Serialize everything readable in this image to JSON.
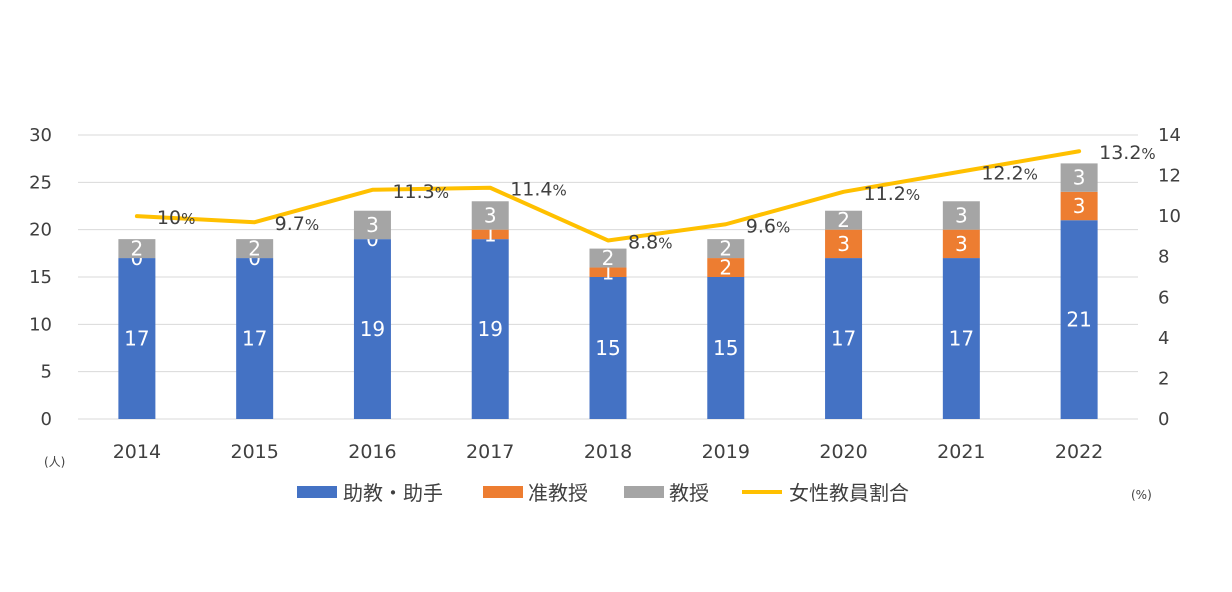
{
  "chart_data": {
    "type": "bar",
    "stacked": true,
    "categories": [
      "2014",
      "2015",
      "2016",
      "2017",
      "2018",
      "2019",
      "2020",
      "2021",
      "2022"
    ],
    "series": [
      {
        "name": "助教・助手",
        "color": "#4472C4",
        "values": [
          17,
          17,
          19,
          19,
          15,
          15,
          17,
          17,
          21
        ]
      },
      {
        "name": "准教授",
        "color": "#ED7D31",
        "values": [
          0,
          0,
          0,
          1,
          1,
          2,
          3,
          3,
          3
        ]
      },
      {
        "name": "教授",
        "color": "#A5A5A5",
        "values": [
          2,
          2,
          3,
          3,
          2,
          2,
          2,
          3,
          3
        ]
      }
    ],
    "line_series": {
      "name": "女性教員割合",
      "color": "#FFC000",
      "axis": "right",
      "values": [
        10,
        9.7,
        11.3,
        11.4,
        8.8,
        9.6,
        11.2,
        12.2,
        13.2
      ],
      "labels": [
        "10",
        "9.7",
        "11.3",
        "11.4",
        "8.8",
        "9.6",
        "11.2",
        "12.2",
        "13.2"
      ],
      "label_suffix": "%"
    },
    "left_axis": {
      "min": 0,
      "max": 30,
      "step": 5,
      "ticks": [
        "0",
        "5",
        "10",
        "15",
        "20",
        "25",
        "30"
      ],
      "unit": "(人)"
    },
    "right_axis": {
      "min": 0,
      "max": 14,
      "step": 2,
      "ticks": [
        "0",
        "2",
        "4",
        "6",
        "8",
        "10",
        "12",
        "14"
      ],
      "unit": "(%)"
    },
    "grid": true,
    "legend_position": "bottom"
  }
}
